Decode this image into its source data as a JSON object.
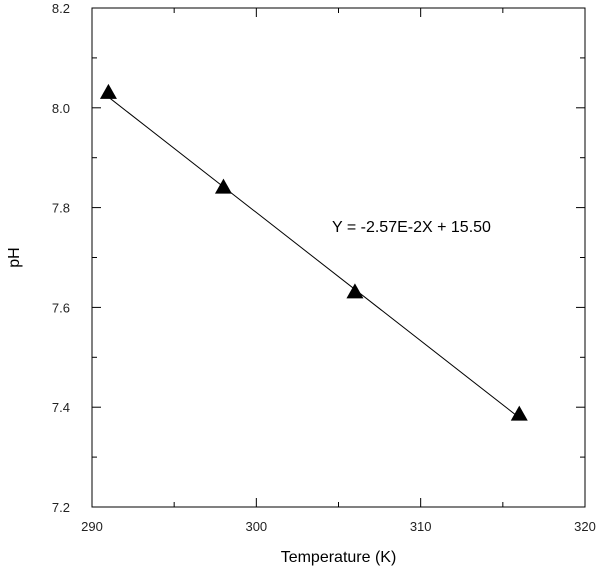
{
  "chart_data": {
    "type": "scatter",
    "title": "",
    "xlabel": "Temperature (K)",
    "ylabel": "pH",
    "xlim": [
      290,
      320
    ],
    "ylim": [
      7.2,
      8.2
    ],
    "x_ticks": [
      "290",
      "300",
      "310",
      "320"
    ],
    "y_ticks": [
      "7.2",
      "7.4",
      "7.6",
      "7.8",
      "8.0",
      "8.2"
    ],
    "x_minor_step": 5,
    "y_minor_step": 0.1,
    "grid": false,
    "legend": "none",
    "marker": "triangle-filled",
    "series": [
      {
        "x": [
          291,
          298,
          306,
          316
        ],
        "y": [
          8.03,
          7.84,
          7.63,
          7.385
        ]
      }
    ],
    "fit_line": {
      "x": [
        291,
        316
      ],
      "y": [
        8.0215,
        7.379
      ]
    },
    "annotation": "Y = -2.57E-2X + 15.50",
    "colors": {
      "marker": "#000000",
      "line": "#000000",
      "frame": "#000000"
    }
  }
}
